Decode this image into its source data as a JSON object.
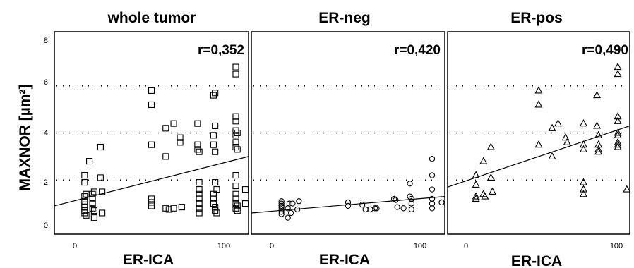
{
  "figure": {
    "ylabel": "MAXNOR [µm²]",
    "yticks": [
      "0",
      "2",
      "4",
      "6",
      "8"
    ],
    "grid_y": [
      2,
      4,
      6
    ]
  },
  "chart_data": [
    {
      "type": "scatter",
      "title": "whole tumor",
      "annotation": "r=0,352",
      "xlabel": "ER-ICA",
      "ylabel": "MAXNOR [µm²]",
      "xticks": [
        "0",
        "100"
      ],
      "xlim": [
        -10,
        112
      ],
      "ylim": [
        -0.3,
        8.3
      ],
      "marker": "square",
      "grid": "dotted horizontal",
      "fit_line": [
        [
          -10,
          0.9
        ],
        [
          112,
          3.0
        ]
      ],
      "x": [
        9,
        9,
        9,
        9,
        9,
        9,
        9,
        9,
        10,
        10,
        12,
        14,
        14,
        14,
        14,
        15,
        15,
        15,
        19,
        19,
        20,
        20,
        51,
        51,
        51,
        51,
        51,
        51,
        60,
        60,
        60,
        62,
        65,
        65,
        69,
        69,
        70,
        80,
        80,
        80,
        81,
        81,
        81,
        81,
        81,
        81,
        81,
        81,
        90,
        90,
        90,
        90,
        90,
        90,
        91,
        91,
        91,
        91,
        91,
        91,
        92,
        92,
        104,
        104,
        104,
        104,
        104,
        104,
        104,
        104,
        104,
        104,
        104,
        104,
        104,
        104,
        105,
        105,
        105,
        105,
        110,
        110
      ],
      "y": [
        2.2,
        1.9,
        1.3,
        1.1,
        0.95,
        0.85,
        0.7,
        0.6,
        1.4,
        0.5,
        2.8,
        1.4,
        1.2,
        1.0,
        0.8,
        1.5,
        0.4,
        0.7,
        3.4,
        2.1,
        1.5,
        0.6,
        5.8,
        5.2,
        3.5,
        1.2,
        1.05,
        0.9,
        4.2,
        3.0,
        0.8,
        0.75,
        4.4,
        0.8,
        3.8,
        3.6,
        0.85,
        4.4,
        3.5,
        3.3,
        3.2,
        1.9,
        1.6,
        1.4,
        1.2,
        1.0,
        0.8,
        0.6,
        5.6,
        3.9,
        3.5,
        1.4,
        1.2,
        1.0,
        5.7,
        4.3,
        3.2,
        1.9,
        0.85,
        0.7,
        0.6,
        1.6,
        6.8,
        6.5,
        4.7,
        4.5,
        4.1,
        3.9,
        3.6,
        3.4,
        2.2,
        1.75,
        1.4,
        1.2,
        1.0,
        0.8,
        4.0,
        3.3,
        0.9,
        0.7,
        1.6,
        1.0
      ]
    },
    {
      "type": "scatter",
      "title": "ER-neg",
      "annotation": "r=0,420",
      "xlabel": "ER-ICA",
      "ylabel": "",
      "xticks": [
        "0",
        "100"
      ],
      "xlim": [
        -10,
        112
      ],
      "ylim": [
        -0.3,
        8.3
      ],
      "marker": "circle",
      "grid": "dotted horizontal",
      "fit_line": [
        [
          -10,
          0.6
        ],
        [
          112,
          1.3
        ]
      ],
      "x": [
        9,
        9,
        9,
        9,
        9,
        9,
        9,
        13,
        13,
        14,
        15,
        16,
        19,
        20,
        51,
        51,
        60,
        62,
        65,
        68,
        69,
        80,
        81,
        82,
        86,
        90,
        90,
        91,
        91,
        91,
        104,
        104,
        104,
        104,
        104,
        104,
        110
      ],
      "y": [
        1.1,
        1.0,
        0.9,
        0.85,
        0.75,
        0.65,
        0.55,
        0.8,
        0.4,
        1.0,
        0.6,
        1.0,
        0.75,
        1.1,
        1.05,
        0.9,
        0.95,
        0.75,
        0.75,
        0.8,
        0.8,
        1.2,
        1.15,
        0.85,
        0.8,
        1.85,
        1.3,
        1.2,
        1.0,
        0.75,
        2.9,
        2.2,
        1.6,
        1.2,
        1.0,
        0.8,
        1.05
      ]
    },
    {
      "type": "scatter",
      "title": "ER-pos",
      "annotation": "r=0,490",
      "xlabel": "ER-ICA",
      "ylabel": "",
      "xticks": [
        "0",
        "100"
      ],
      "xlim": [
        -10,
        112
      ],
      "ylim": [
        -0.3,
        8.3
      ],
      "marker": "triangle",
      "grid": "dotted horizontal",
      "fit_line": [
        [
          -10,
          1.7
        ],
        [
          112,
          4.3
        ]
      ],
      "x": [
        9,
        9,
        9,
        9,
        14,
        14,
        15,
        19,
        19,
        20,
        51,
        51,
        51,
        60,
        60,
        64,
        69,
        70,
        81,
        81,
        81,
        81,
        81,
        81,
        90,
        90,
        91,
        91,
        91,
        91,
        104,
        104,
        104,
        104,
        104,
        104,
        104,
        104,
        104,
        110
      ],
      "y": [
        2.2,
        1.8,
        1.3,
        1.2,
        2.8,
        1.4,
        1.3,
        3.4,
        2.1,
        1.5,
        5.8,
        5.2,
        3.5,
        4.2,
        3.0,
        4.4,
        3.8,
        3.6,
        4.4,
        3.5,
        3.3,
        1.9,
        1.6,
        1.4,
        5.6,
        4.3,
        3.9,
        3.5,
        3.3,
        3.2,
        6.8,
        6.5,
        4.7,
        4.5,
        4.0,
        3.9,
        3.6,
        3.5,
        3.4,
        1.6
      ]
    }
  ]
}
